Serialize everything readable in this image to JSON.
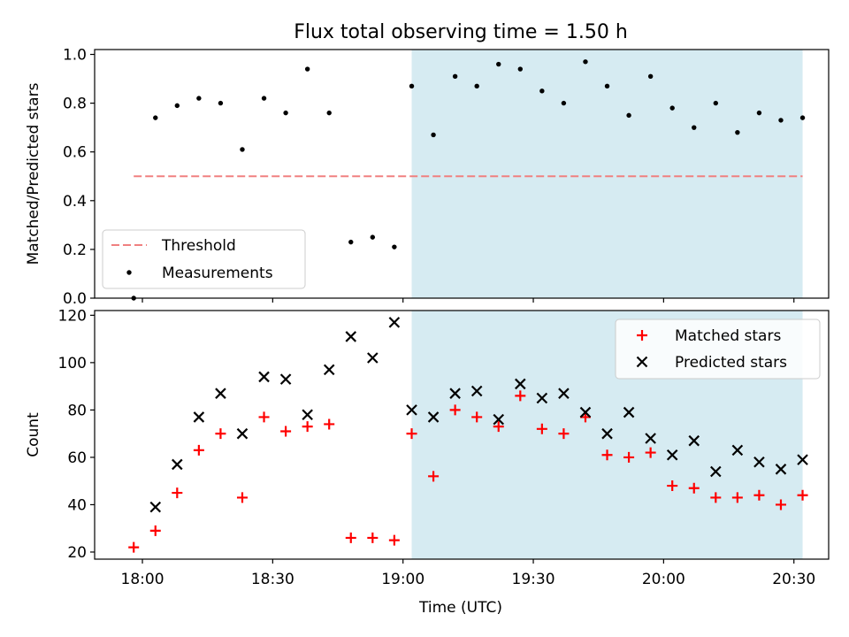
{
  "title": "Flux total observing time = 1.50 h",
  "xlabel": "Time (UTC)",
  "colors": {
    "threshold": "#f08080",
    "measurement": "#000000",
    "matched": "#ff0000",
    "predicted": "#000000",
    "shade": "#add8e6"
  },
  "chart_data": [
    {
      "type": "scatter",
      "ylabel": "Matched/Predicted stars",
      "ylim": [
        0,
        1.02
      ],
      "yticks": [
        0.0,
        0.2,
        0.4,
        0.6,
        0.8,
        1.0
      ],
      "ytick_labels": [
        "0.0",
        "0.2",
        "0.4",
        "0.6",
        "0.8",
        "1.0"
      ],
      "legend_position": "lower-left",
      "shaded_region": {
        "x_start": "19:02",
        "x_end": "20:32"
      },
      "threshold": {
        "name": "Threshold",
        "value": 0.5,
        "x_start": "17:58",
        "x_end": "20:32",
        "style": "dashed"
      },
      "series": [
        {
          "name": "Measurements",
          "marker": "dot",
          "x": [
            "17:58",
            "18:03",
            "18:08",
            "18:13",
            "18:18",
            "18:23",
            "18:28",
            "18:33",
            "18:38",
            "18:43",
            "18:48",
            "18:53",
            "18:58",
            "19:02",
            "19:07",
            "19:12",
            "19:17",
            "19:22",
            "19:27",
            "19:32",
            "19:37",
            "19:42",
            "19:47",
            "19:52",
            "19:57",
            "20:02",
            "20:07",
            "20:12",
            "20:17",
            "20:22",
            "20:27",
            "20:32"
          ],
          "values": [
            0.0,
            0.74,
            0.79,
            0.82,
            0.8,
            0.61,
            0.82,
            0.76,
            0.94,
            0.76,
            0.23,
            0.25,
            0.21,
            0.87,
            0.67,
            0.91,
            0.87,
            0.96,
            0.94,
            0.85,
            0.8,
            0.97,
            0.87,
            0.75,
            0.91,
            0.78,
            0.7,
            0.8,
            0.68,
            0.76,
            0.73,
            0.74
          ]
        }
      ]
    },
    {
      "type": "scatter",
      "ylabel": "Count",
      "ylim": [
        17,
        122
      ],
      "yticks": [
        20,
        40,
        60,
        80,
        100,
        120
      ],
      "ytick_labels": [
        "20",
        "40",
        "60",
        "80",
        "100",
        "120"
      ],
      "xlim": [
        "17:49",
        "20:38"
      ],
      "xticks": [
        "18:00",
        "18:30",
        "19:00",
        "19:30",
        "20:00",
        "20:30"
      ],
      "legend_position": "upper-right",
      "shaded_region": {
        "x_start": "19:02",
        "x_end": "20:32"
      },
      "series": [
        {
          "name": "Matched stars",
          "marker": "plus",
          "x": [
            "17:58",
            "18:03",
            "18:08",
            "18:13",
            "18:18",
            "18:23",
            "18:28",
            "18:33",
            "18:38",
            "18:43",
            "18:48",
            "18:53",
            "18:58",
            "19:02",
            "19:07",
            "19:12",
            "19:17",
            "19:22",
            "19:27",
            "19:32",
            "19:37",
            "19:42",
            "19:47",
            "19:52",
            "19:57",
            "20:02",
            "20:07",
            "20:12",
            "20:17",
            "20:22",
            "20:27",
            "20:32"
          ],
          "values": [
            22,
            29,
            45,
            63,
            70,
            43,
            77,
            71,
            73,
            74,
            26,
            26,
            25,
            70,
            52,
            80,
            77,
            73,
            86,
            72,
            70,
            77,
            61,
            60,
            62,
            48,
            47,
            43,
            43,
            44,
            40,
            44
          ]
        },
        {
          "name": "Predicted stars",
          "marker": "x",
          "x": [
            "18:03",
            "18:08",
            "18:13",
            "18:18",
            "18:23",
            "18:28",
            "18:33",
            "18:38",
            "18:43",
            "18:48",
            "18:53",
            "18:58",
            "19:02",
            "19:07",
            "19:12",
            "19:17",
            "19:22",
            "19:27",
            "19:32",
            "19:37",
            "19:42",
            "19:47",
            "19:52",
            "19:57",
            "20:02",
            "20:07",
            "20:12",
            "20:17",
            "20:22",
            "20:27",
            "20:32"
          ],
          "values": [
            39,
            57,
            77,
            87,
            70,
            94,
            93,
            78,
            97,
            111,
            102,
            117,
            80,
            77,
            87,
            88,
            76,
            91,
            85,
            87,
            79,
            70,
            79,
            68,
            61,
            67,
            54,
            63,
            58,
            55,
            59
          ]
        }
      ]
    }
  ]
}
